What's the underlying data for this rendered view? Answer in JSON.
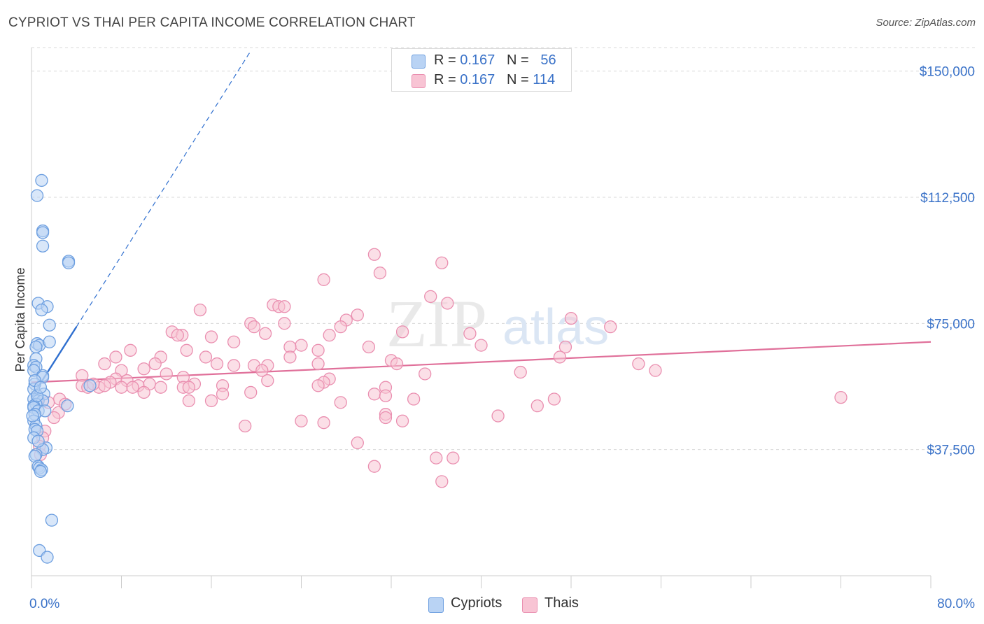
{
  "title": "CYPRIOT VS THAI PER CAPITA INCOME CORRELATION CHART",
  "source": "Source: ZipAtlas.com",
  "watermark": {
    "zip": "ZIP",
    "atlas": "atlas"
  },
  "legend": {
    "rows": [
      {
        "r_label": "R = ",
        "r_value": "0.167",
        "n_label": "N = ",
        "n_value": "56"
      },
      {
        "r_label": "R = ",
        "r_value": "0.167",
        "n_label": "N = ",
        "n_value": "114"
      }
    ]
  },
  "colors": {
    "cypriots_fill": "#b9d3f4",
    "cypriots_stroke": "#6d9fe0",
    "cypriots_line": "#2f6fcf",
    "thais_fill": "#f8c4d4",
    "thais_stroke": "#ea8fb0",
    "thais_line": "#e0709a",
    "axis_label": "#3a72c8",
    "grid": "#d8d8d8"
  },
  "chart_data": {
    "type": "scatter",
    "title": "CYPRIOT VS THAI PER CAPITA INCOME CORRELATION CHART",
    "xlabel": "",
    "ylabel": "Per Capita Income",
    "xlim": [
      0,
      80
    ],
    "ylim": [
      0,
      157000
    ],
    "x_tick_labels": [
      "0.0%",
      "80.0%"
    ],
    "y_ticks": [
      37500,
      75000,
      112500,
      150000
    ],
    "y_tick_labels": [
      "$37,500",
      "$75,000",
      "$112,500",
      "$150,000"
    ],
    "grid": true,
    "legend_position": "top-center",
    "series": [
      {
        "name": "Cypriots",
        "r": 0.167,
        "n": 56,
        "trend": {
          "x": [
            0.0,
            4.0
          ],
          "y": [
            53000,
            74000
          ],
          "dashed_to": [
            19.5,
            156000
          ]
        },
        "points": [
          [
            0.9,
            117500
          ],
          [
            0.5,
            113000
          ],
          [
            1.0,
            102500
          ],
          [
            1.0,
            102000
          ],
          [
            1.0,
            98000
          ],
          [
            3.3,
            93500
          ],
          [
            3.3,
            93000
          ],
          [
            0.6,
            81000
          ],
          [
            1.4,
            80000
          ],
          [
            0.9,
            79000
          ],
          [
            1.6,
            74500
          ],
          [
            0.5,
            69000
          ],
          [
            0.7,
            68500
          ],
          [
            1.6,
            69500
          ],
          [
            0.4,
            68000
          ],
          [
            0.4,
            64500
          ],
          [
            0.2,
            62500
          ],
          [
            0.4,
            62000
          ],
          [
            0.2,
            61000
          ],
          [
            1.0,
            59500
          ],
          [
            1.0,
            59000
          ],
          [
            0.3,
            57000
          ],
          [
            0.2,
            55500
          ],
          [
            1.1,
            54000
          ],
          [
            0.2,
            52500
          ],
          [
            0.6,
            52000
          ],
          [
            1.0,
            52000
          ],
          [
            0.4,
            51000
          ],
          [
            0.2,
            50500
          ],
          [
            0.2,
            50000
          ],
          [
            0.6,
            49000
          ],
          [
            1.2,
            49000
          ],
          [
            0.3,
            48000
          ],
          [
            0.2,
            46000
          ],
          [
            0.4,
            44500
          ],
          [
            0.3,
            43500
          ],
          [
            0.5,
            43000
          ],
          [
            1.3,
            38000
          ],
          [
            1.0,
            37500
          ],
          [
            0.4,
            36000
          ],
          [
            0.3,
            35500
          ],
          [
            0.6,
            32500
          ],
          [
            0.7,
            32000
          ],
          [
            0.9,
            31500
          ],
          [
            0.8,
            31000
          ],
          [
            1.8,
            16500
          ],
          [
            0.7,
            7500
          ],
          [
            1.4,
            5500
          ],
          [
            3.2,
            50500
          ],
          [
            5.2,
            56500
          ],
          [
            0.2,
            41000
          ],
          [
            0.3,
            58000
          ],
          [
            0.5,
            53500
          ],
          [
            0.8,
            56000
          ],
          [
            0.1,
            47500
          ],
          [
            0.6,
            40000
          ]
        ]
      },
      {
        "name": "Thais",
        "r": 0.167,
        "n": 114,
        "trend": {
          "x": [
            0.0,
            80.0
          ],
          "y": [
            57500,
            69500
          ]
        },
        "points": [
          [
            30.5,
            95500
          ],
          [
            36.5,
            93000
          ],
          [
            31.0,
            90000
          ],
          [
            26.0,
            88000
          ],
          [
            35.5,
            83000
          ],
          [
            37.0,
            81000
          ],
          [
            21.5,
            80500
          ],
          [
            22.0,
            80000
          ],
          [
            22.5,
            80000
          ],
          [
            15.0,
            79000
          ],
          [
            29.0,
            77500
          ],
          [
            48.0,
            76500
          ],
          [
            28.0,
            76000
          ],
          [
            19.5,
            75000
          ],
          [
            22.5,
            75000
          ],
          [
            27.5,
            74000
          ],
          [
            51.5,
            74000
          ],
          [
            19.8,
            74000
          ],
          [
            12.5,
            72500
          ],
          [
            20.8,
            72000
          ],
          [
            33.0,
            72500
          ],
          [
            39.0,
            72000
          ],
          [
            13.4,
            71500
          ],
          [
            13.0,
            71500
          ],
          [
            26.5,
            71500
          ],
          [
            16.0,
            71000
          ],
          [
            18.0,
            69500
          ],
          [
            30.0,
            68000
          ],
          [
            40.0,
            68500
          ],
          [
            47.5,
            68000
          ],
          [
            24.0,
            68500
          ],
          [
            23.0,
            68000
          ],
          [
            8.8,
            67000
          ],
          [
            13.8,
            67000
          ],
          [
            25.5,
            67000
          ],
          [
            7.5,
            65000
          ],
          [
            11.5,
            65000
          ],
          [
            15.5,
            65000
          ],
          [
            23.0,
            65000
          ],
          [
            47.0,
            65000
          ],
          [
            19.8,
            62500
          ],
          [
            25.5,
            63000
          ],
          [
            32.0,
            64000
          ],
          [
            32.5,
            63000
          ],
          [
            11.0,
            63000
          ],
          [
            6.5,
            63000
          ],
          [
            16.5,
            63000
          ],
          [
            18.0,
            62500
          ],
          [
            54.0,
            63000
          ],
          [
            21.0,
            62500
          ],
          [
            10.0,
            61500
          ],
          [
            8.0,
            61000
          ],
          [
            20.5,
            61000
          ],
          [
            12.0,
            60000
          ],
          [
            35.0,
            60000
          ],
          [
            43.5,
            60500
          ],
          [
            55.5,
            61000
          ],
          [
            4.5,
            59500
          ],
          [
            13.5,
            59000
          ],
          [
            7.5,
            58500
          ],
          [
            8.5,
            58000
          ],
          [
            21.0,
            58000
          ],
          [
            26.5,
            58500
          ],
          [
            26.0,
            57500
          ],
          [
            4.5,
            56500
          ],
          [
            5.0,
            56000
          ],
          [
            6.0,
            56000
          ],
          [
            7.0,
            57500
          ],
          [
            8.0,
            56000
          ],
          [
            9.5,
            56500
          ],
          [
            10.5,
            57000
          ],
          [
            14.5,
            57000
          ],
          [
            17.0,
            56500
          ],
          [
            25.5,
            56500
          ],
          [
            9.0,
            56000
          ],
          [
            11.5,
            56000
          ],
          [
            13.5,
            56000
          ],
          [
            14.0,
            56000
          ],
          [
            6.5,
            56500
          ],
          [
            5.5,
            57000
          ],
          [
            31.5,
            56000
          ],
          [
            19.5,
            54500
          ],
          [
            10.0,
            54500
          ],
          [
            17.0,
            54000
          ],
          [
            30.5,
            54000
          ],
          [
            31.5,
            53500
          ],
          [
            34.0,
            52500
          ],
          [
            46.5,
            52500
          ],
          [
            14.0,
            52000
          ],
          [
            16.0,
            52000
          ],
          [
            27.5,
            51500
          ],
          [
            72.0,
            53000
          ],
          [
            2.5,
            52500
          ],
          [
            1.5,
            51500
          ],
          [
            3.0,
            51000
          ],
          [
            2.4,
            48500
          ],
          [
            2.0,
            47000
          ],
          [
            45.0,
            50500
          ],
          [
            31.5,
            48000
          ],
          [
            33.0,
            46000
          ],
          [
            26.0,
            45500
          ],
          [
            19.0,
            44500
          ],
          [
            41.5,
            47500
          ],
          [
            31.5,
            47000
          ],
          [
            24.0,
            46000
          ],
          [
            29.0,
            39500
          ],
          [
            1.2,
            43000
          ],
          [
            1.0,
            41000
          ],
          [
            0.7,
            38500
          ],
          [
            0.8,
            36000
          ],
          [
            30.5,
            32500
          ],
          [
            36.0,
            35000
          ],
          [
            37.5,
            35000
          ],
          [
            36.5,
            28000
          ]
        ]
      }
    ]
  },
  "bottom_legend": [
    {
      "label": "Cypriots"
    },
    {
      "label": "Thais"
    }
  ]
}
